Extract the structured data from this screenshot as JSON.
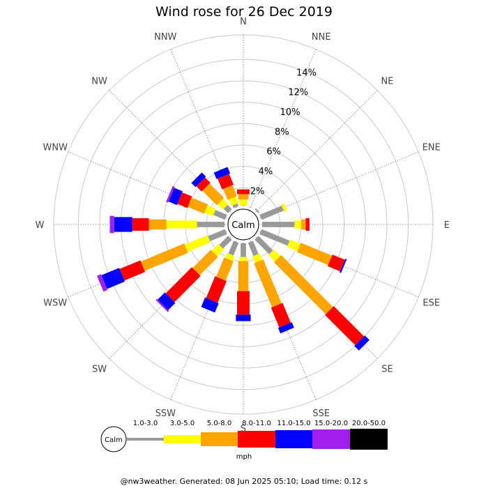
{
  "chart_data": {
    "type": "wind-rose",
    "title": "Wind rose for 26 Dec 2019",
    "calm_label": "Calm",
    "directions": [
      "N",
      "NNE",
      "NE",
      "ENE",
      "E",
      "ESE",
      "SE",
      "SSE",
      "S",
      "SSW",
      "SW",
      "WSW",
      "W",
      "WNW",
      "NW",
      "NNW"
    ],
    "radial_ticks": [
      "2%",
      "4%",
      "6%",
      "8%",
      "10%",
      "12%",
      "14%"
    ],
    "radial_tick_values": [
      2,
      4,
      6,
      8,
      10,
      12,
      14
    ],
    "r_max": 16.3,
    "unit": "mph",
    "speed_bins": [
      {
        "label": "1.0-3.0",
        "color": "#999999"
      },
      {
        "label": "3.0-5.0",
        "color": "#ffff00"
      },
      {
        "label": "5.0-8.0",
        "color": "#ffa500"
      },
      {
        "label": "8.0-11.0",
        "color": "#ff0000"
      },
      {
        "label": "11.0-15.0",
        "color": "#0000ff"
      },
      {
        "label": "15.0-20.0",
        "color": "#a020f0"
      },
      {
        "label": "20.0-50.0",
        "color": "#000000"
      }
    ],
    "cumulative": {
      "N": [
        0.35,
        0.9,
        1.4,
        1.85,
        1.85,
        1.85,
        1.85
      ],
      "NNE": [
        0.35,
        0.35,
        0.35,
        0.35,
        0.35,
        0.35,
        0.35
      ],
      "NE": [
        0.45,
        0.45,
        0.45,
        0.45,
        0.45,
        0.45,
        0.45
      ],
      "ENE": [
        2.55,
        2.85,
        2.85,
        2.85,
        2.85,
        2.85,
        2.85
      ],
      "E": [
        3.35,
        4.0,
        4.4,
        4.75,
        4.75,
        4.75,
        4.75
      ],
      "ESE": [
        3.15,
        4.2,
        7.35,
        8.6,
        8.75,
        8.75,
        8.75
      ],
      "SE": [
        2.25,
        3.1,
        9.95,
        13.95,
        14.55,
        14.55,
        14.55
      ],
      "SSE": [
        1.65,
        2.3,
        6.75,
        8.75,
        9.3,
        9.3,
        9.3
      ],
      "S": [
        1.6,
        2.0,
        4.8,
        7.0,
        7.6,
        7.6,
        7.6
      ],
      "SSW": [
        1.6,
        2.1,
        4.05,
        6.25,
        7.2,
        7.2,
        7.2
      ],
      "SW": [
        1.5,
        2.4,
        4.8,
        8.25,
        9.2,
        9.35,
        9.35
      ],
      "WSW": [
        2.05,
        4.35,
        8.75,
        10.85,
        12.65,
        13.05,
        13.05
      ],
      "W": [
        2.9,
        5.75,
        7.4,
        8.95,
        10.65,
        11.05,
        11.05
      ],
      "WNW": [
        1.5,
        2.35,
        4.0,
        5.0,
        5.85,
        6.05,
        6.05
      ],
      "NW": [
        0.9,
        1.6,
        3.5,
        4.2,
        4.75,
        4.75,
        4.75
      ],
      "NNW": [
        0.6,
        1.25,
        2.35,
        3.45,
        4.1,
        4.1,
        4.1
      ]
    }
  },
  "footer_text": "@nw3weather. Generated: 08 Jun 2025 05:10; Load time: 0.12 s"
}
